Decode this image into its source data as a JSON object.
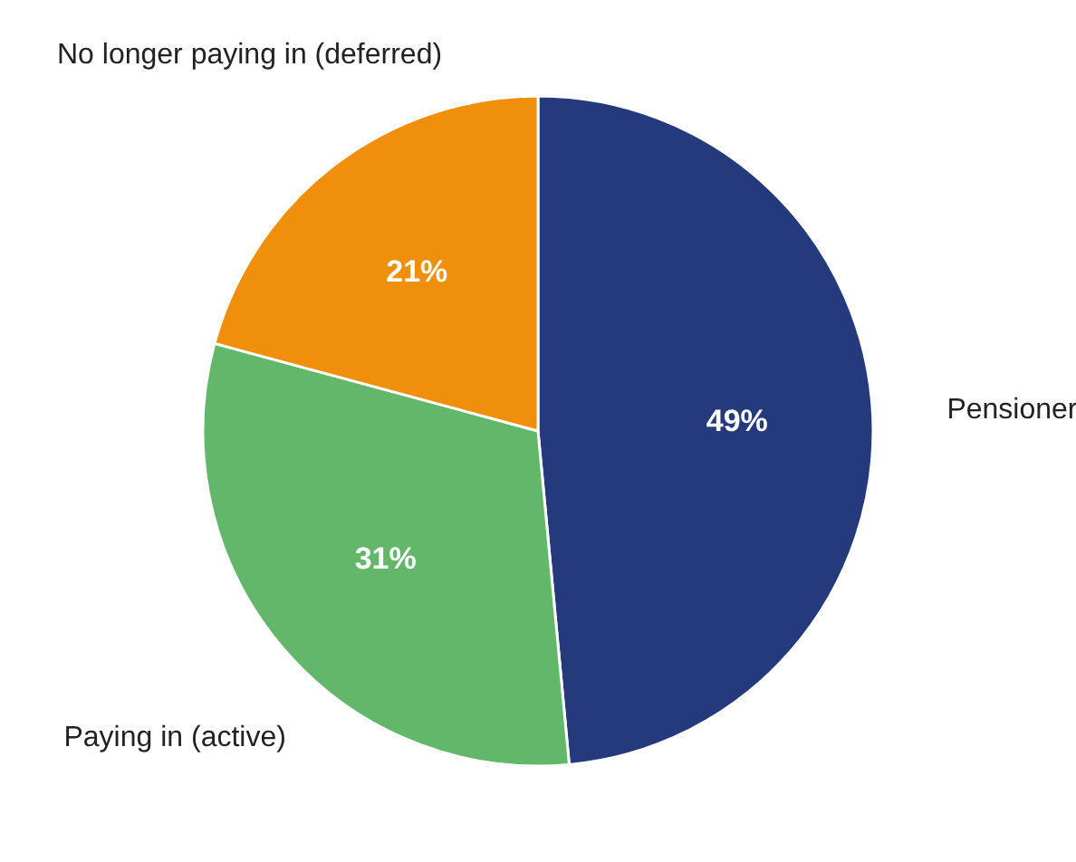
{
  "chart_data": {
    "type": "pie",
    "categories": [
      "Pensioner",
      "Paying in (active)",
      "No longer paying in (deferred)"
    ],
    "values": [
      49,
      31,
      21
    ],
    "colors": [
      "#253a7d",
      "#62b76a",
      "#f08f0b"
    ],
    "value_labels": [
      "49%",
      "31%",
      "21%"
    ]
  }
}
